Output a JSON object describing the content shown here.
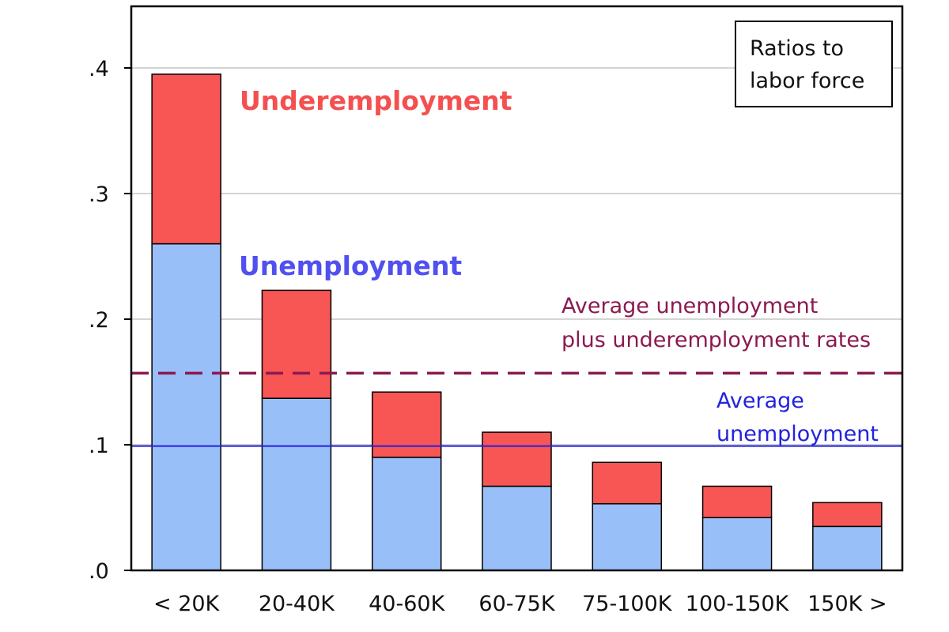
{
  "chart_data": {
    "type": "bar",
    "stacked": true,
    "categories": [
      "< 20K",
      "20-40K",
      "40-60K",
      "60-75K",
      "75-100K",
      "100-150K",
      "150K >"
    ],
    "series": [
      {
        "name": "Unemployment",
        "values": [
          0.26,
          0.137,
          0.09,
          0.067,
          0.053,
          0.042,
          0.035
        ],
        "color": "#99bff9"
      },
      {
        "name": "Underemployment",
        "values": [
          0.135,
          0.086,
          0.052,
          0.043,
          0.033,
          0.025,
          0.019
        ],
        "color": "#f85555"
      }
    ],
    "reference_lines": [
      {
        "label_lines": [
          "Average unemployment",
          "plus underemployment rates"
        ],
        "value": 0.157,
        "style": "dashed",
        "color": "#8b1a50"
      },
      {
        "label_lines": [
          "Average",
          "unemployment"
        ],
        "value": 0.099,
        "style": "solid",
        "color": "#2222dd"
      }
    ],
    "ylim": [
      0,
      0.45
    ],
    "yticks": [
      ".0",
      ".1",
      ".2",
      ".3",
      ".4"
    ],
    "ytick_values": [
      0,
      0.1,
      0.2,
      0.3,
      0.4
    ],
    "grid": "horizontal",
    "legend_box_lines": [
      "Ratios to",
      "labor force"
    ],
    "legend_placement": "top-right",
    "xlabel": "",
    "ylabel": ""
  }
}
